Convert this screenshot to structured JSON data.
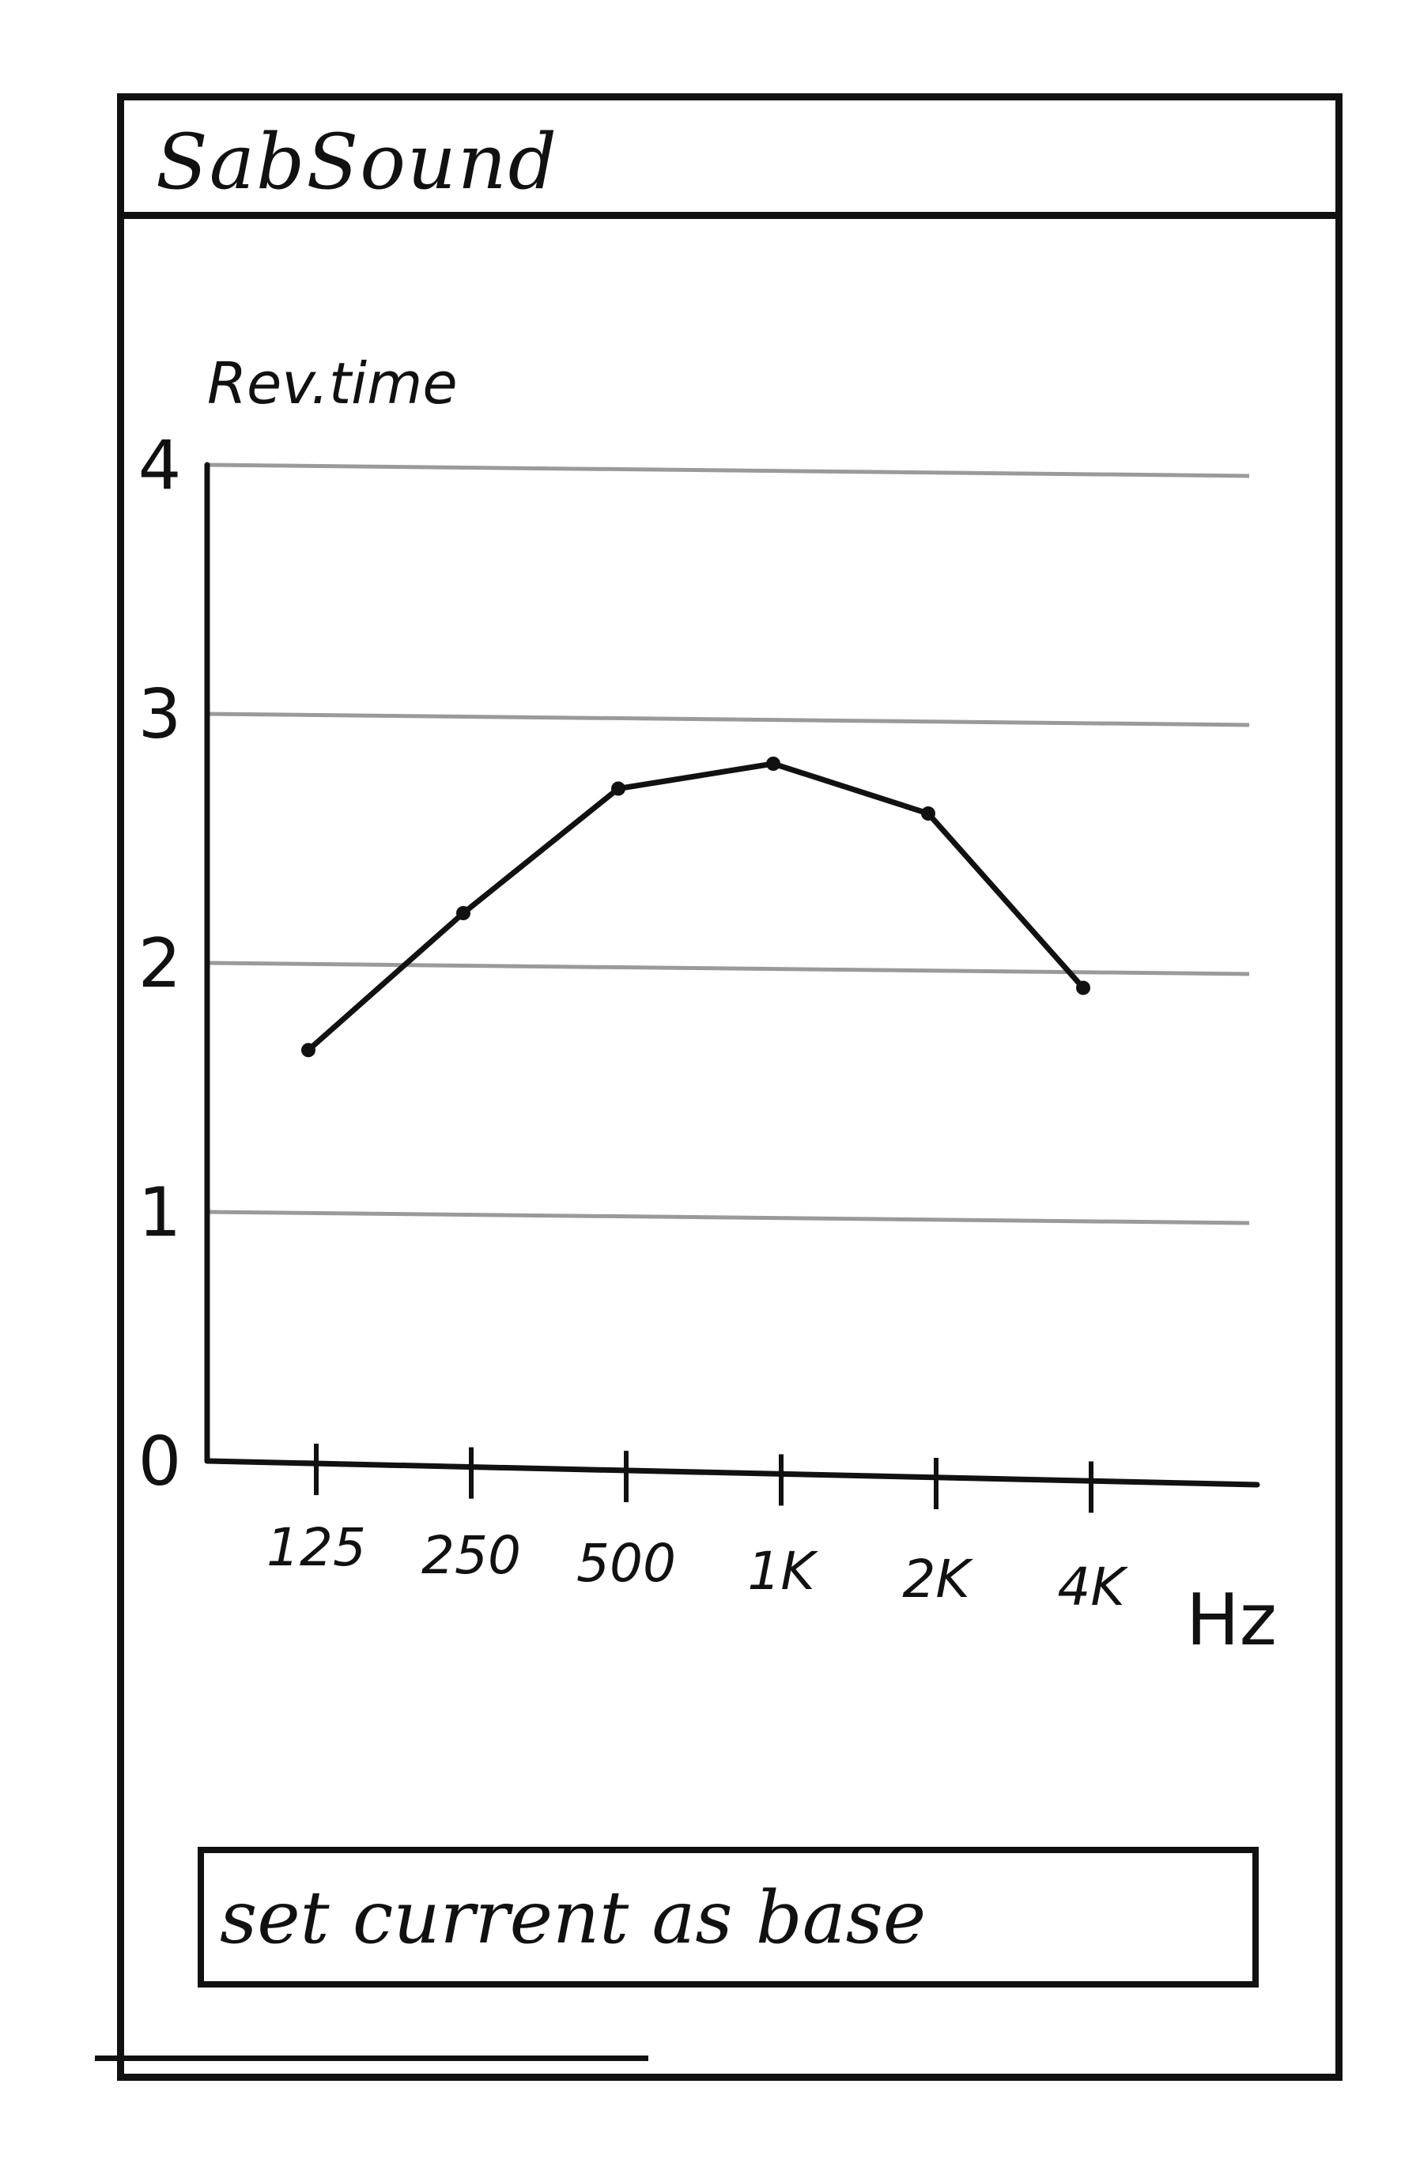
{
  "app": {
    "title": "SabSound"
  },
  "chart_data": {
    "type": "line",
    "ylabel": "Rev.time",
    "xlabel": "Hz",
    "categories": [
      "125",
      "250",
      "500",
      "1K",
      "2K",
      "4K"
    ],
    "y_ticks": [
      "0",
      "1",
      "2",
      "3",
      "4"
    ],
    "ylim": [
      0,
      4
    ],
    "grid": true,
    "series": [
      {
        "values": [
          1.65,
          2.2,
          2.7,
          2.8,
          2.6,
          1.9
        ]
      }
    ]
  },
  "actions": {
    "set_base_label": "set current as base"
  },
  "colors": {
    "ink": "#111111",
    "grid": "#9a9a9a",
    "background": "#ffffff"
  }
}
